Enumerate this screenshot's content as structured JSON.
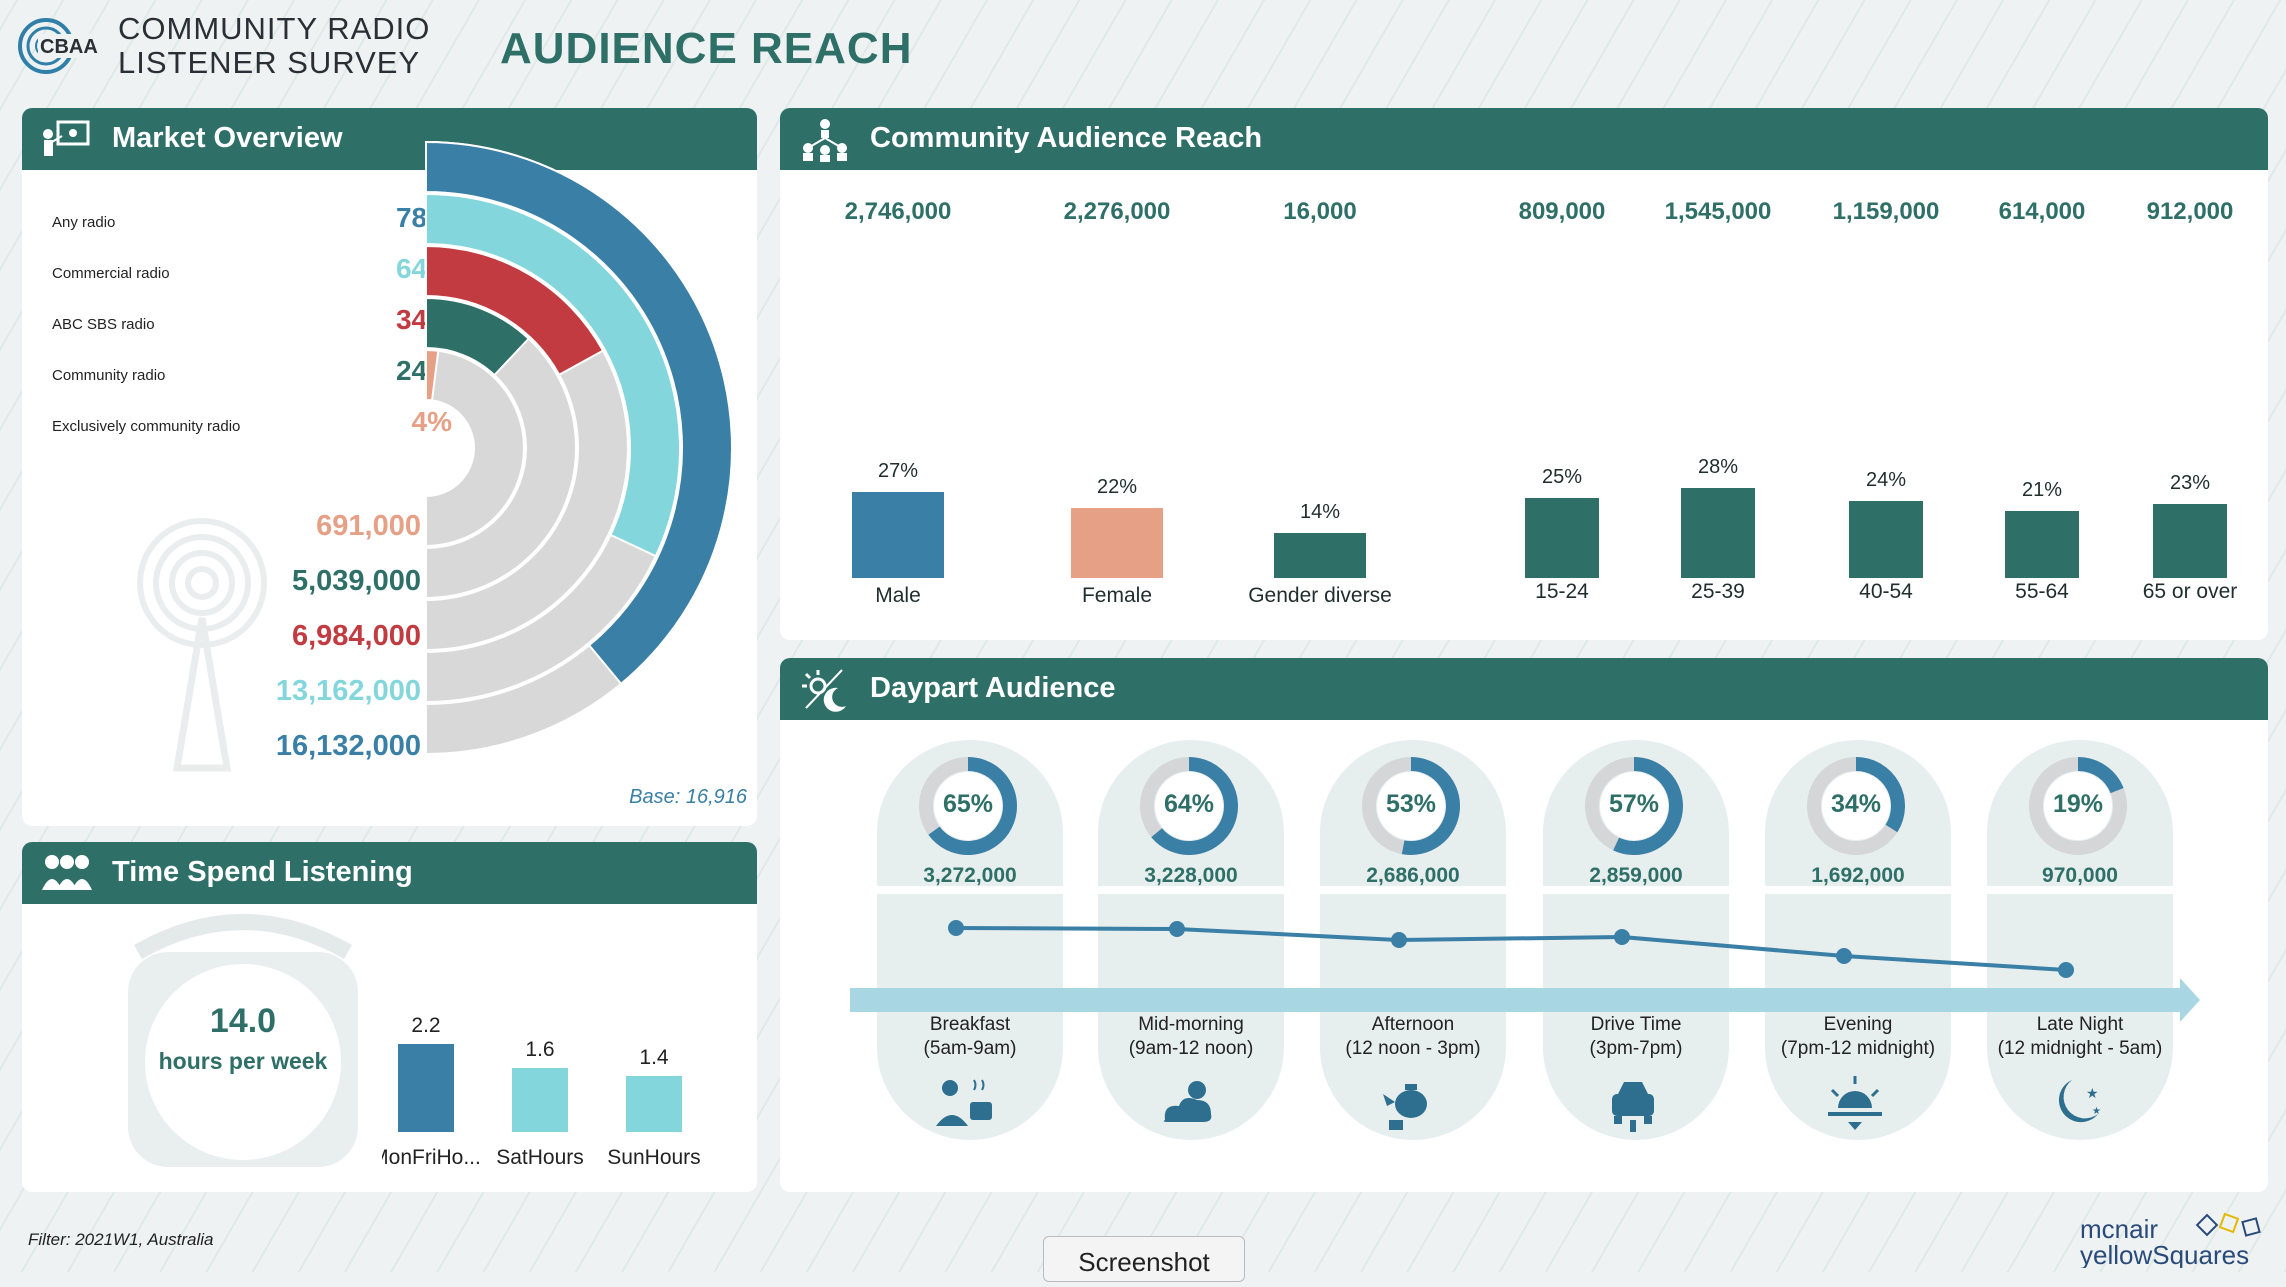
{
  "header": {
    "logo_text": "CBAA",
    "title_line1": "COMMUNITY RADIO",
    "title_line2": "LISTENER SURVEY",
    "page_title": "AUDIENCE REACH"
  },
  "colors": {
    "teal_dark": "#2e7068",
    "blue": "#3a7fa6",
    "aqua": "#84d6dd",
    "red": "#c23b40",
    "salmon": "#e6a085",
    "grey": "#d6d6d6"
  },
  "market_overview": {
    "title": "Market Overview",
    "rows": [
      {
        "label": "Any radio",
        "pct": "78%",
        "color": "#3a7fa6"
      },
      {
        "label": "Commercial radio",
        "pct": "64%",
        "color": "#84d6dd"
      },
      {
        "label": "ABC SBS radio",
        "pct": "34%",
        "color": "#c23b40"
      },
      {
        "label": "Community radio",
        "pct": "24%",
        "color": "#2e7068"
      },
      {
        "label": "Exclusively community radio",
        "pct": "4%",
        "color": "#e6a085"
      }
    ],
    "counts": [
      {
        "value": "691,000",
        "color": "#e6a085"
      },
      {
        "value": "5,039,000",
        "color": "#2e7068"
      },
      {
        "value": "6,984,000",
        "color": "#c23b40"
      },
      {
        "value": "13,162,000",
        "color": "#84d6dd"
      },
      {
        "value": "16,132,000",
        "color": "#3a7fa6"
      }
    ],
    "ring_values": [
      0.78,
      0.64,
      0.34,
      0.24,
      0.04
    ],
    "base_note": "Base: 16,916"
  },
  "time_spent": {
    "title": "Time Spend Listening",
    "hours": "14.0",
    "hours_label": "hours per week",
    "chart_data": {
      "type": "bar",
      "categories": [
        "MonFriHo...",
        "SatHours",
        "SunHours"
      ],
      "values": [
        2.2,
        1.6,
        1.4
      ],
      "value_labels": [
        "2.2",
        "1.6",
        "1.4"
      ],
      "colors": [
        "#3a7fa6",
        "#84d6dd",
        "#84d6dd"
      ]
    }
  },
  "community_reach": {
    "title": "Community Audience Reach",
    "chart_data": {
      "type": "bar",
      "categories": [
        "Male",
        "Female",
        "Gender diverse",
        "15-24",
        "25-39",
        "40-54",
        "55-64",
        "65 or over"
      ],
      "values": [
        27,
        22,
        14,
        25,
        28,
        24,
        21,
        23
      ],
      "value_labels": [
        "27%",
        "22%",
        "14%",
        "25%",
        "28%",
        "24%",
        "21%",
        "23%"
      ],
      "counts": [
        "2,746,000",
        "2,276,000",
        "16,000",
        "809,000",
        "1,545,000",
        "1,159,000",
        "614,000",
        "912,000"
      ],
      "colors": [
        "#3a7fa6",
        "#e6a085",
        "#2e7068",
        "#2e7068",
        "#2e7068",
        "#2e7068",
        "#2e7068",
        "#2e7068"
      ]
    }
  },
  "daypart": {
    "title": "Daypart Audience",
    "chart_data": {
      "type": "line",
      "categories": [
        "Breakfast",
        "Mid-morning",
        "Afternoon",
        "Drive Time",
        "Evening",
        "Late Night"
      ],
      "values": [
        65,
        64,
        53,
        57,
        34,
        19
      ],
      "value_labels": [
        "65%",
        "64%",
        "53%",
        "57%",
        "34%",
        "19%"
      ],
      "counts": [
        "3,272,000",
        "3,228,000",
        "2,686,000",
        "2,859,000",
        "1,692,000",
        "970,000"
      ],
      "times": [
        "(5am-9am)",
        "(9am-12 noon)",
        "(12 noon - 3pm)",
        "(3pm-7pm)",
        "(7pm-12 midnight)",
        "(12 midnight - 5am)"
      ],
      "icons": [
        "breakfast-icon",
        "cloud-sun-icon",
        "teapot-icon",
        "car-icon",
        "sunset-icon",
        "moon-icon"
      ]
    }
  },
  "footer": {
    "filter": "Filter: 2021W1, Australia",
    "screenshot_button": "Screenshot",
    "brand_line1": "mcnair",
    "brand_line2": "yellowSquares"
  }
}
